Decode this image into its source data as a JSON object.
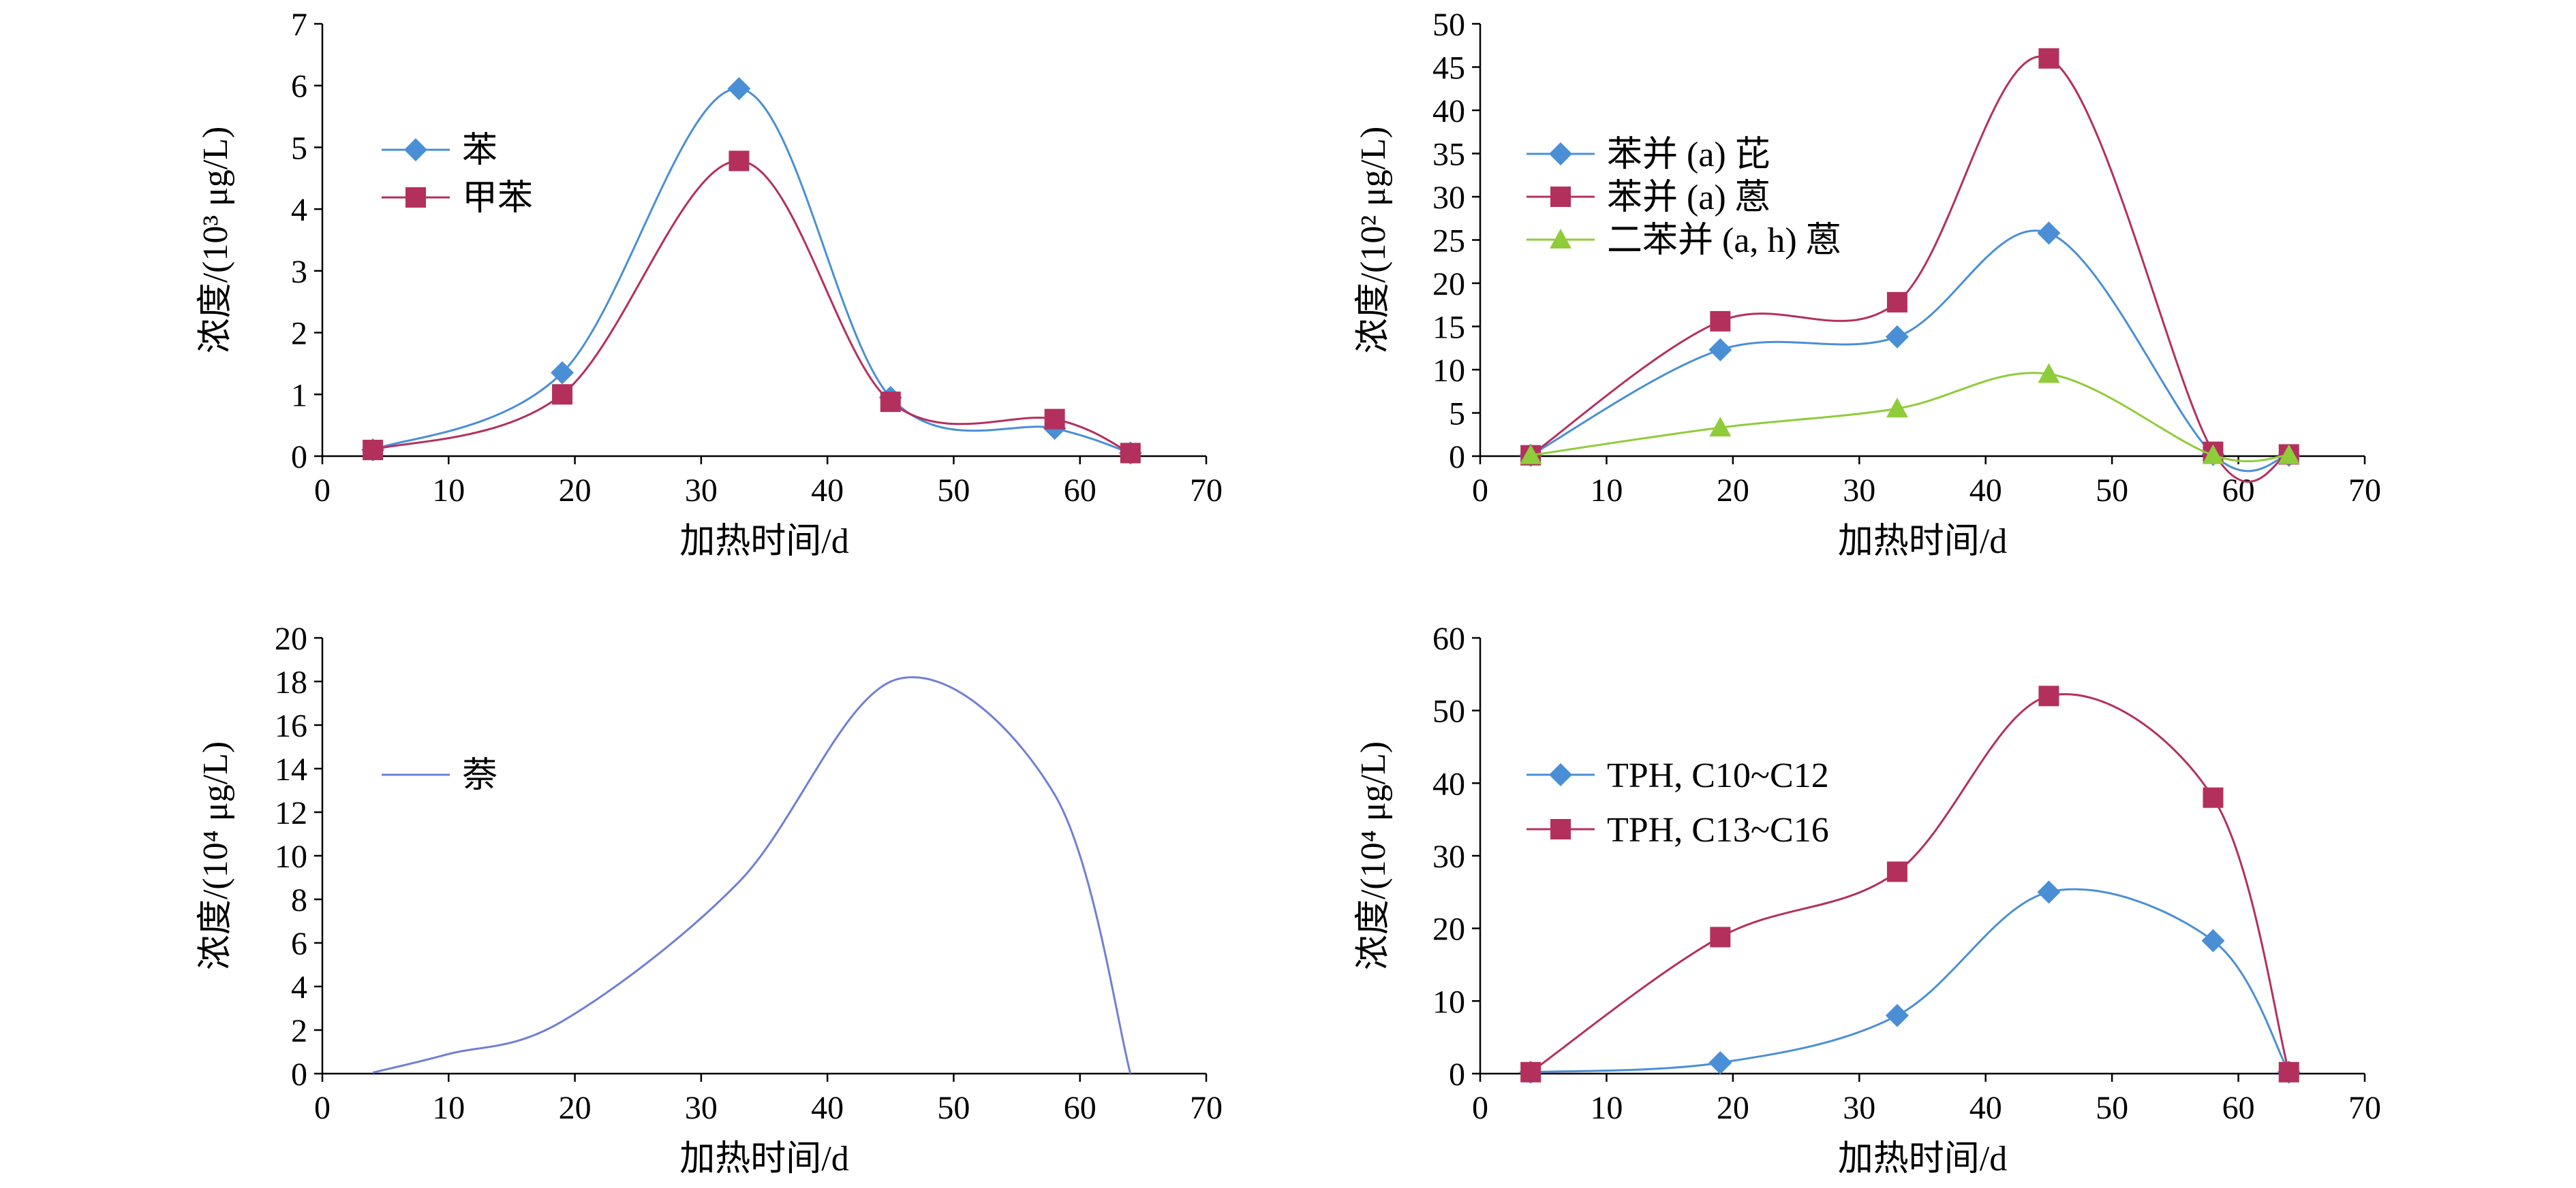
{
  "chart_data": [
    {
      "type": "line",
      "xlabel": "加热时间/d",
      "ylabel": "浓度/(10³ μg/L)",
      "xlim": [
        0,
        70
      ],
      "xticks": [
        0,
        10,
        20,
        30,
        40,
        50,
        60,
        70
      ],
      "ylim": [
        0,
        7
      ],
      "yticks": [
        0,
        1,
        2,
        3,
        4,
        5,
        6,
        7
      ],
      "legend_position": "top-left",
      "series": [
        {
          "name": "苯",
          "color": "#4a8fd6",
          "marker": "diamond",
          "x": [
            4,
            19,
            33,
            45,
            58,
            64
          ],
          "y": [
            0.1,
            1.35,
            5.95,
            0.95,
            0.45,
            0.05
          ]
        },
        {
          "name": "甲苯",
          "color": "#b3305d",
          "marker": "square",
          "x": [
            4,
            19,
            33,
            45,
            58,
            64
          ],
          "y": [
            0.1,
            1.0,
            4.78,
            0.88,
            0.6,
            0.05
          ]
        }
      ]
    },
    {
      "type": "line",
      "xlabel": "加热时间/d",
      "ylabel": "浓度/(10² μg/L)",
      "xlim": [
        0,
        70
      ],
      "xticks": [
        0,
        10,
        20,
        30,
        40,
        50,
        60,
        70
      ],
      "ylim": [
        0,
        50
      ],
      "yticks": [
        0,
        5,
        10,
        15,
        20,
        25,
        30,
        35,
        40,
        45,
        50
      ],
      "legend_position": "top-left",
      "series": [
        {
          "name": "苯并 (a) 芘",
          "color": "#4a8fd6",
          "marker": "diamond",
          "x": [
            4,
            19,
            33,
            45,
            58,
            64
          ],
          "y": [
            0.1,
            12.3,
            13.8,
            25.8,
            0.2,
            0.1
          ]
        },
        {
          "name": "苯并 (a) 蒽",
          "color": "#b3305d",
          "marker": "square",
          "x": [
            4,
            19,
            33,
            45,
            58,
            64
          ],
          "y": [
            0.1,
            15.6,
            17.8,
            46.0,
            0.5,
            0.2
          ]
        },
        {
          "name": "二苯并 (a, h) 蒽",
          "color": "#8fcc3a",
          "marker": "triangle",
          "x": [
            4,
            19,
            33,
            45,
            58,
            64
          ],
          "y": [
            0.1,
            3.3,
            5.5,
            9.5,
            0.1,
            0.1
          ]
        }
      ]
    },
    {
      "type": "line",
      "xlabel": "加热时间/d",
      "ylabel": "浓度/(10⁴ μg/L)",
      "xlim": [
        0,
        70
      ],
      "xticks": [
        0,
        10,
        20,
        30,
        40,
        50,
        60,
        70
      ],
      "ylim": [
        0,
        20
      ],
      "yticks": [
        0,
        2,
        4,
        6,
        8,
        10,
        12,
        14,
        16,
        18,
        20
      ],
      "legend_position": "top-left",
      "series": [
        {
          "name": "萘",
          "color": "#6f7fd6",
          "marker": "none",
          "x": [
            4,
            10,
            19,
            33,
            45.5,
            58,
            64
          ],
          "y": [
            0.05,
            0.9,
            2.4,
            8.8,
            18.1,
            12.8,
            0.0
          ]
        }
      ]
    },
    {
      "type": "line",
      "xlabel": "加热时间/d",
      "ylabel": "浓度/(10⁴ μg/L)",
      "xlim": [
        0,
        70
      ],
      "xticks": [
        0,
        10,
        20,
        30,
        40,
        50,
        60,
        70
      ],
      "ylim": [
        0,
        60
      ],
      "yticks": [
        0,
        10,
        20,
        30,
        40,
        50,
        60
      ],
      "legend_position": "top-left",
      "series": [
        {
          "name": "TPH, C10~C12",
          "color": "#4a8fd6",
          "marker": "diamond",
          "x": [
            4,
            19,
            33,
            45,
            58,
            64
          ],
          "y": [
            0.2,
            1.5,
            8.0,
            25.0,
            18.3,
            0.2
          ]
        },
        {
          "name": "TPH, C13~C16",
          "color": "#b3305d",
          "marker": "square",
          "x": [
            4,
            19,
            33,
            45,
            58,
            64
          ],
          "y": [
            0.2,
            18.8,
            27.8,
            52.0,
            38.0,
            0.2
          ]
        }
      ]
    }
  ]
}
